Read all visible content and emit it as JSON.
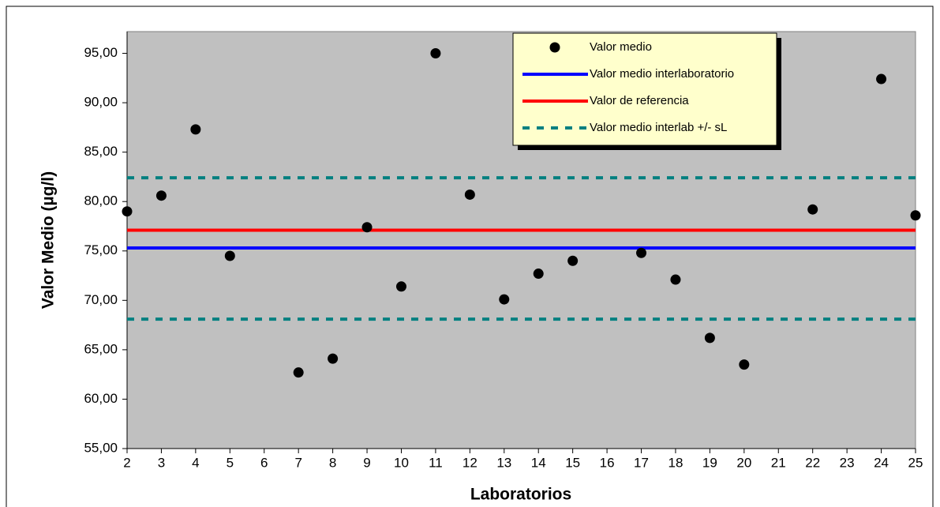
{
  "chart_data": {
    "type": "scatter",
    "x_label": "Laboratorios",
    "y_label": "Valor Medio (µg/l)",
    "categories": [
      "2",
      "3",
      "4",
      "5",
      "6",
      "7",
      "8",
      "9",
      "10",
      "11",
      "12",
      "13",
      "14",
      "15",
      "16",
      "17",
      "18",
      "19",
      "20",
      "21",
      "22",
      "23",
      "24",
      "25"
    ],
    "series": [
      {
        "name": "Valor medio",
        "color": "#000000",
        "values": [
          79.0,
          80.6,
          87.3,
          74.5,
          null,
          62.7,
          64.1,
          77.4,
          71.4,
          95.0,
          80.7,
          70.1,
          72.7,
          74.0,
          null,
          74.8,
          72.1,
          66.2,
          63.5,
          null,
          79.2,
          null,
          92.4,
          78.6
        ]
      }
    ],
    "lines": [
      {
        "name": "Valor medio interlaboratorio",
        "color": "#0000ff",
        "values": [
          75.3
        ]
      },
      {
        "name": "Valor de referencia",
        "color": "#ff0000",
        "values": [
          77.1
        ]
      },
      {
        "name": "Valor medio interlab  +/- sL",
        "color": "#008080",
        "dashed": true,
        "values": [
          82.4,
          68.1
        ]
      }
    ],
    "ylim": [
      55,
      97.2
    ],
    "yticks": [
      {
        "value": 55,
        "label": "55,00"
      },
      {
        "value": 60,
        "label": "60,00"
      },
      {
        "value": 65,
        "label": "65,00"
      },
      {
        "value": 70,
        "label": "70,00"
      },
      {
        "value": 75,
        "label": "75,00"
      },
      {
        "value": 80,
        "label": "80,00"
      },
      {
        "value": 85,
        "label": "85,00"
      },
      {
        "value": 90,
        "label": "90,00"
      },
      {
        "value": 95,
        "label": "95,00"
      }
    ]
  }
}
